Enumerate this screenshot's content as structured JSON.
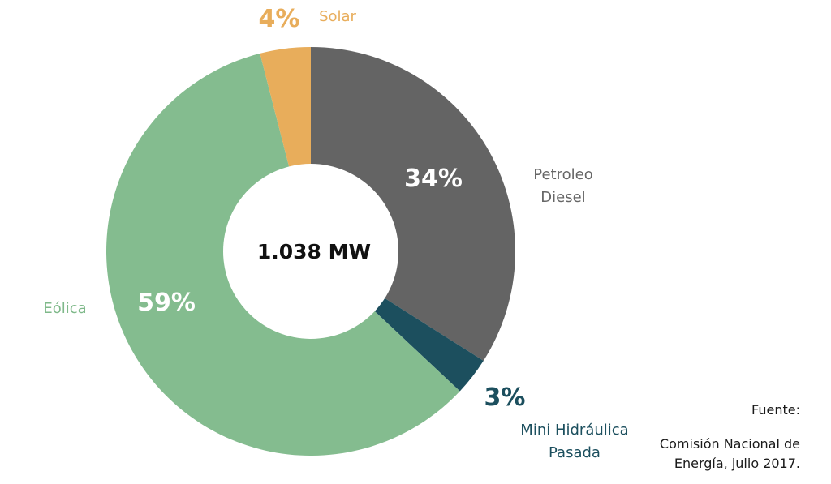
{
  "chart_data": {
    "type": "pie",
    "donut": true,
    "center_label": "1.038 MW",
    "slices": [
      {
        "name": "Petroleo Diesel",
        "label_lines": [
          "Petroleo",
          "Diesel"
        ],
        "value": 34,
        "pct_label": "34%",
        "color": "#646464",
        "pct_color": "#ffffff",
        "label_color": "#666666"
      },
      {
        "name": "Mini Hidráulica Pasada",
        "label_lines": [
          "Mini Hidráulica",
          "Pasada"
        ],
        "value": 3,
        "pct_label": "3%",
        "color": "#1c4f5e",
        "pct_color": "#1c4f5e",
        "label_color": "#1c4f5e"
      },
      {
        "name": "Eólica",
        "label_lines": [
          "Eólica"
        ],
        "value": 59,
        "pct_label": "59%",
        "color": "#84bc8f",
        "pct_color": "#ffffff",
        "label_color": "#7fb98a"
      },
      {
        "name": "Solar",
        "label_lines": [
          "Solar"
        ],
        "value": 4,
        "pct_label": "4%",
        "color": "#e8ad5b",
        "pct_color": "#e8ad5b",
        "label_color": "#e8ad5b"
      }
    ]
  },
  "source": {
    "title": "Fuente:",
    "lines": [
      "Comisión Nacional de",
      "Energía, julio 2017."
    ]
  }
}
